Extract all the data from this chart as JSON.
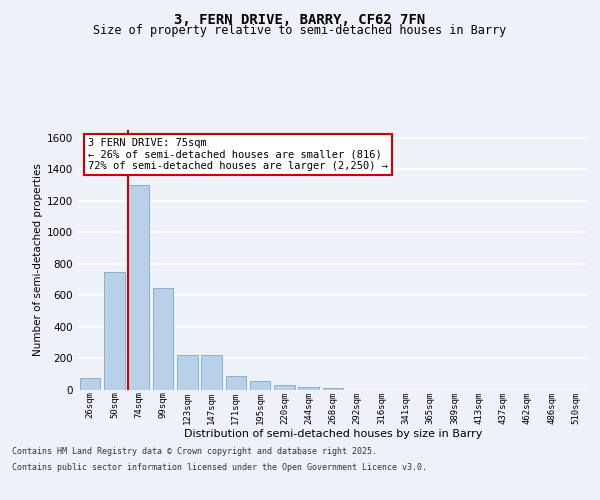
{
  "title": "3, FERN DRIVE, BARRY, CF62 7FN",
  "subtitle": "Size of property relative to semi-detached houses in Barry",
  "xlabel": "Distribution of semi-detached houses by size in Barry",
  "ylabel": "Number of semi-detached properties",
  "categories": [
    "26sqm",
    "50sqm",
    "74sqm",
    "99sqm",
    "123sqm",
    "147sqm",
    "171sqm",
    "195sqm",
    "220sqm",
    "244sqm",
    "268sqm",
    "292sqm",
    "316sqm",
    "341sqm",
    "365sqm",
    "389sqm",
    "413sqm",
    "437sqm",
    "462sqm",
    "486sqm",
    "510sqm"
  ],
  "values": [
    75,
    750,
    1300,
    650,
    220,
    220,
    90,
    55,
    30,
    20,
    10,
    3,
    2,
    1,
    1,
    0,
    0,
    0,
    0,
    0,
    0
  ],
  "bar_color": "#b8d0e8",
  "bar_edge_color": "#8ab0d0",
  "vline_color": "#cc0000",
  "vline_x_index": 2,
  "annotation_title": "3 FERN DRIVE: 75sqm",
  "annotation_line1": "← 26% of semi-detached houses are smaller (816)",
  "annotation_line2": "72% of semi-detached houses are larger (2,250) →",
  "annotation_box_color": "#cc0000",
  "ylim": [
    0,
    1650
  ],
  "yticks": [
    0,
    200,
    400,
    600,
    800,
    1000,
    1200,
    1400,
    1600
  ],
  "background_color": "#eef2f8",
  "grid_color": "#ffffff",
  "footer_line1": "Contains HM Land Registry data © Crown copyright and database right 2025.",
  "footer_line2": "Contains public sector information licensed under the Open Government Licence v3.0."
}
